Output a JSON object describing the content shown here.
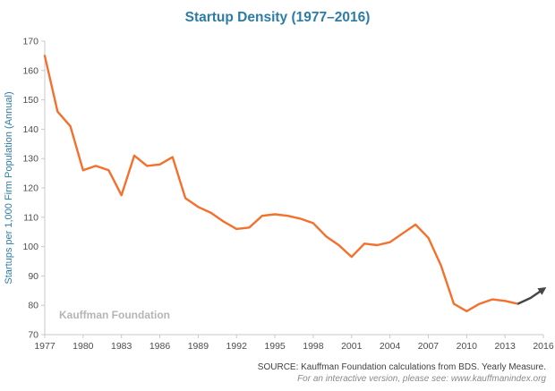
{
  "chart_data": {
    "type": "line",
    "title": "Startup Density (1977–2016)",
    "ylabel": "Startups per 1,000 Firm Population (Annual)",
    "xlabel": "",
    "xlim": [
      1977,
      2016
    ],
    "ylim": [
      70,
      170
    ],
    "ytick_step": 10,
    "xtick_step": 3,
    "grid": false,
    "legend": "none",
    "watermark": "Kauffman Foundation",
    "years": [
      1977,
      1978,
      1979,
      1980,
      1981,
      1982,
      1983,
      1984,
      1985,
      1986,
      1987,
      1988,
      1989,
      1990,
      1991,
      1992,
      1993,
      1994,
      1995,
      1996,
      1997,
      1998,
      1999,
      2000,
      2001,
      2002,
      2003,
      2004,
      2005,
      2006,
      2007,
      2008,
      2009,
      2010,
      2011,
      2012,
      2013,
      2014,
      2015,
      2016
    ],
    "values": [
      165,
      146,
      141,
      126,
      127.5,
      126,
      117.5,
      131,
      127.5,
      128,
      130.5,
      116.5,
      113.5,
      111.5,
      108.5,
      106,
      106.5,
      110.5,
      111,
      110.5,
      109.5,
      108,
      103.5,
      100.5,
      96.5,
      101,
      100.5,
      101.5,
      104.5,
      107.5,
      103,
      93.5,
      80.5,
      78,
      80.5,
      82,
      81.5,
      80.5,
      82.5,
      85.5
    ],
    "series_name": "Startup Density",
    "line_color": "#f3702d",
    "projection": {
      "from_year": 2014,
      "color": "#454545",
      "arrow": true
    },
    "title_color": "#2d7ca6",
    "label_color": "#2d7ca6",
    "axis_color": "#c8c8c8",
    "tick_color": "#4d4d4d",
    "watermark_color": "#b5b5b5"
  },
  "footer": {
    "source": "SOURCE: Kauffman Foundation calculations from BDS. Yearly Measure.",
    "interactive_note": "For an interactive version, please see: www.kauffmanindex.org"
  }
}
